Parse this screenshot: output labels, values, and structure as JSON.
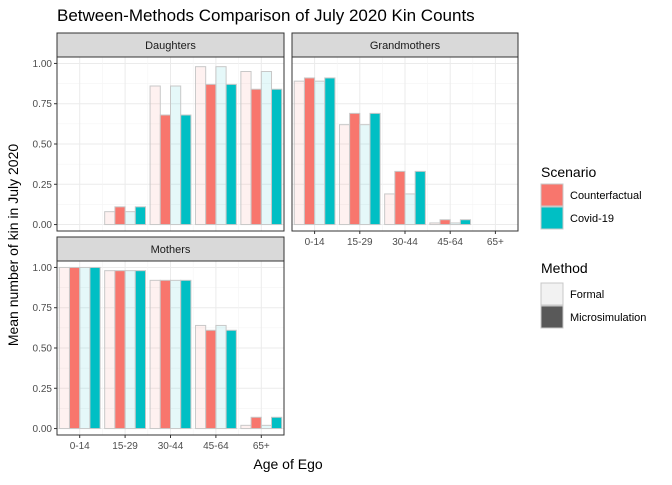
{
  "chart_data": {
    "type": "bar",
    "title": "Between-Methods Comparison of July 2020 Kin Counts",
    "xlabel": "Age of Ego",
    "ylabel": "Mean number of kin in July 2020",
    "categories": [
      "0-14",
      "15-29",
      "30-44",
      "45-64",
      "65+"
    ],
    "ylim": [
      -0.04,
      1.04
    ],
    "yticks": [
      "0.00",
      "0.25",
      "0.50",
      "0.75",
      "1.00"
    ],
    "grid": true,
    "colors": {
      "Counterfactual": "#F8766D",
      "Covid-19": "#00BFC4",
      "Formal": "#f2f2f2",
      "Microsimulation": "#595959",
      "panel_strip": "#d9d9d9",
      "grid": "#ebebeb",
      "border": "#333333",
      "bar_outline": "#c8c8c8"
    },
    "legend": {
      "placement": "right",
      "scenario": {
        "title": "Scenario",
        "entries": [
          "Counterfactual",
          "Covid-19"
        ]
      },
      "method": {
        "title": "Method",
        "entries": [
          "Formal",
          "Microsimulation"
        ]
      }
    },
    "bar_order": [
      {
        "scenario": "Counterfactual",
        "method": "Formal"
      },
      {
        "scenario": "Counterfactual",
        "method": "Microsimulation"
      },
      {
        "scenario": "Covid-19",
        "method": "Formal"
      },
      {
        "scenario": "Covid-19",
        "method": "Microsimulation"
      }
    ],
    "panels": [
      {
        "name": "Daughters",
        "show_x_ticks": false,
        "show_y_ticks": true,
        "series": [
          {
            "scenario": "Counterfactual",
            "method": "Formal",
            "values": [
              0.0,
              0.08,
              0.86,
              0.98,
              0.95
            ]
          },
          {
            "scenario": "Counterfactual",
            "method": "Microsimulation",
            "values": [
              0.0,
              0.11,
              0.68,
              0.87,
              0.84
            ]
          },
          {
            "scenario": "Covid-19",
            "method": "Formal",
            "values": [
              0.0,
              0.08,
              0.86,
              0.98,
              0.95
            ]
          },
          {
            "scenario": "Covid-19",
            "method": "Microsimulation",
            "values": [
              0.0,
              0.11,
              0.68,
              0.87,
              0.84
            ]
          }
        ]
      },
      {
        "name": "Grandmothers",
        "show_x_ticks": true,
        "show_y_ticks": false,
        "series": [
          {
            "scenario": "Counterfactual",
            "method": "Formal",
            "values": [
              0.89,
              0.62,
              0.19,
              0.01,
              0.0
            ]
          },
          {
            "scenario": "Counterfactual",
            "method": "Microsimulation",
            "values": [
              0.91,
              0.69,
              0.33,
              0.03,
              0.0
            ]
          },
          {
            "scenario": "Covid-19",
            "method": "Formal",
            "values": [
              0.89,
              0.62,
              0.19,
              0.01,
              0.0
            ]
          },
          {
            "scenario": "Covid-19",
            "method": "Microsimulation",
            "values": [
              0.91,
              0.69,
              0.33,
              0.03,
              0.0
            ]
          }
        ]
      },
      {
        "name": "Mothers",
        "show_x_ticks": true,
        "show_y_ticks": true,
        "series": [
          {
            "scenario": "Counterfactual",
            "method": "Formal",
            "values": [
              1.0,
              0.98,
              0.92,
              0.64,
              0.02
            ]
          },
          {
            "scenario": "Counterfactual",
            "method": "Microsimulation",
            "values": [
              1.0,
              0.98,
              0.92,
              0.61,
              0.07
            ]
          },
          {
            "scenario": "Covid-19",
            "method": "Formal",
            "values": [
              1.0,
              0.98,
              0.92,
              0.64,
              0.02
            ]
          },
          {
            "scenario": "Covid-19",
            "method": "Microsimulation",
            "values": [
              1.0,
              0.98,
              0.92,
              0.61,
              0.07
            ]
          }
        ]
      }
    ]
  }
}
